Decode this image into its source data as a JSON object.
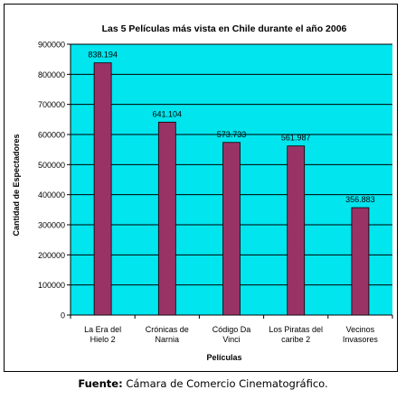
{
  "chart_data": {
    "type": "bar",
    "title": "Las 5 Películas más vista en Chile durante el año 2006",
    "xlabel": "Películas",
    "ylabel": "Cantidad de Espectadores",
    "categories": [
      [
        "La Era del",
        "Hielo 2"
      ],
      [
        "Crónicas de",
        "Narnia"
      ],
      [
        "Código Da",
        "Vinci"
      ],
      [
        "Los Piratas del",
        "caribe 2"
      ],
      [
        "Vecinos",
        "Invasores"
      ]
    ],
    "values": [
      838194,
      641104,
      573733,
      561987,
      356883
    ],
    "data_labels": [
      "838.194",
      "641.104",
      "573.733",
      "561.987",
      "356.883"
    ],
    "yticks": [
      "0",
      "100000",
      "200000",
      "300000",
      "400000",
      "500000",
      "600000",
      "700000",
      "800000",
      "900000"
    ],
    "ylim": [
      0,
      900000
    ],
    "grid": true,
    "legend": "none",
    "colors": {
      "plot_bg": "#00e5ee",
      "bar": "#993366",
      "grid": "#000000"
    }
  },
  "source": {
    "label": "Fuente:",
    "text": " Cámara de Comercio Cinematográfico."
  }
}
